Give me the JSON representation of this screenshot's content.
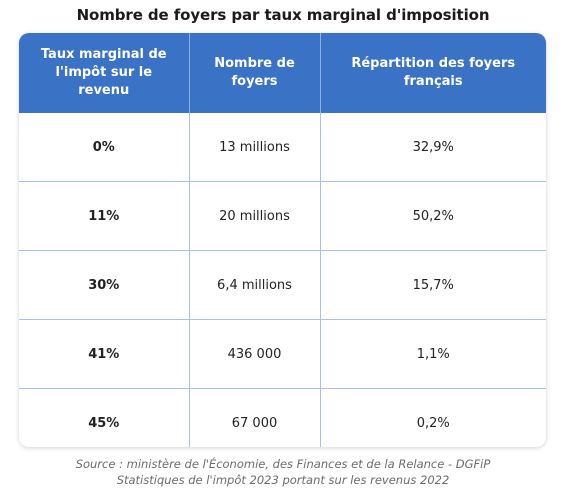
{
  "title": "Nombre de foyers par taux marginal d'imposition",
  "table": {
    "headers": [
      "Taux marginal de l'impôt sur le revenu",
      "Nombre de foyers",
      "Répartition des foyers français"
    ],
    "rows": [
      {
        "rate": "0%",
        "households": "13 millions",
        "share": "32,9%"
      },
      {
        "rate": "11%",
        "households": "20 millions",
        "share": "50,2%"
      },
      {
        "rate": "30%",
        "households": "6,4 millions",
        "share": "15,7%"
      },
      {
        "rate": "41%",
        "households": "436 000",
        "share": "1,1%"
      },
      {
        "rate": "45%",
        "households": "67 000",
        "share": "0,2%"
      }
    ]
  },
  "source": {
    "line1": "Source : ministère de l'Économie, des Finances et de la Relance - DGFiP",
    "line2": "Statistiques de l'impôt 2023 portant sur les revenus 2022"
  },
  "colors": {
    "header_background": "#3a72c6",
    "header_text": "#ffffff",
    "grid_lines": "#a9c1e6"
  }
}
